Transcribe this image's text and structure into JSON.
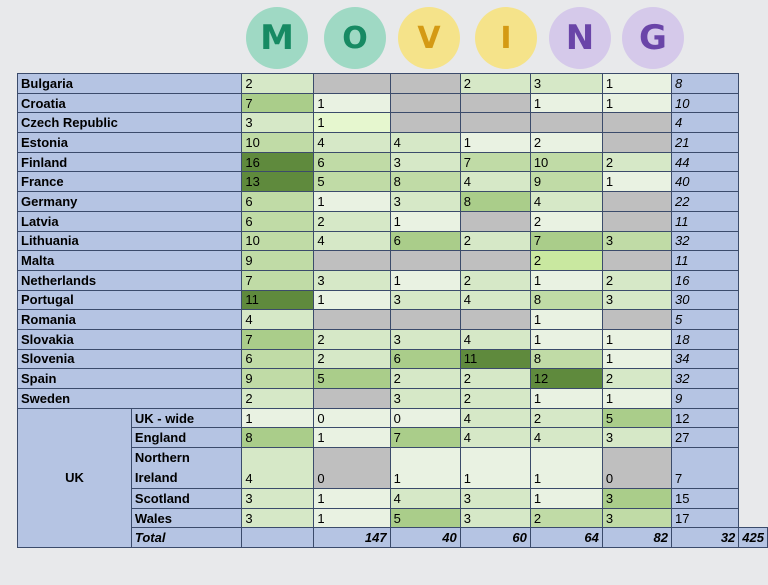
{
  "header": {
    "letters": [
      "M",
      "O",
      "V",
      "I",
      "N",
      "G"
    ]
  },
  "table": {
    "rows": [
      {
        "country": "Bulgaria",
        "cells": [
          "2",
          "",
          "",
          "2",
          "3",
          "1"
        ],
        "total": "8"
      },
      {
        "country": "Croatia",
        "cells": [
          "7",
          "1",
          "",
          "",
          "1",
          "1"
        ],
        "total": "10"
      },
      {
        "country": "Czech Republic",
        "cells": [
          "3",
          "1",
          "",
          "",
          "",
          ""
        ],
        "total": "4"
      },
      {
        "country": "Estonia",
        "cells": [
          "10",
          "4",
          "4",
          "1",
          "2",
          ""
        ],
        "total": "21"
      },
      {
        "country": "Finland",
        "cells": [
          "16",
          "6",
          "3",
          "7",
          "10",
          "2"
        ],
        "total": "44"
      },
      {
        "country": "France",
        "cells": [
          "13",
          "5",
          "8",
          "4",
          "9",
          "1"
        ],
        "total": "40"
      },
      {
        "country": "Germany",
        "cells": [
          "6",
          "1",
          "3",
          "8",
          "4",
          ""
        ],
        "total": "22"
      },
      {
        "country": "Latvia",
        "cells": [
          "6",
          "2",
          "1",
          "",
          "2",
          ""
        ],
        "total": "11"
      },
      {
        "country": "Lithuania",
        "cells": [
          "10",
          "4",
          "6",
          "2",
          "7",
          "3"
        ],
        "total": "32"
      },
      {
        "country": "Malta",
        "cells": [
          "9",
          "",
          "",
          "",
          "2",
          ""
        ],
        "total": "11"
      },
      {
        "country": "Netherlands",
        "cells": [
          "7",
          "3",
          "1",
          "2",
          "1",
          "2"
        ],
        "total": "16"
      },
      {
        "country": "Portugal",
        "cells": [
          "11",
          "1",
          "3",
          "4",
          "8",
          "3"
        ],
        "total": "30"
      },
      {
        "country": "Romania",
        "cells": [
          "4",
          "",
          "",
          "",
          "1",
          ""
        ],
        "total": "5"
      },
      {
        "country": "Slovakia",
        "cells": [
          "7",
          "2",
          "3",
          "4",
          "1",
          "1"
        ],
        "total": "18"
      },
      {
        "country": "Slovenia",
        "cells": [
          "6",
          "2",
          "6",
          "11",
          "8",
          "1"
        ],
        "total": "34"
      },
      {
        "country": "Spain",
        "cells": [
          "9",
          "5",
          "2",
          "2",
          "12",
          "2"
        ],
        "total": "32"
      },
      {
        "country": "Sweden",
        "cells": [
          "2",
          "",
          "3",
          "2",
          "1",
          "1"
        ],
        "total": "9"
      }
    ],
    "uk": {
      "label": "UK",
      "rows": [
        {
          "sub": "UK - wide",
          "cells": [
            "1",
            "0",
            "0",
            "4",
            "2",
            "5"
          ],
          "total": "12"
        },
        {
          "sub": "England",
          "cells": [
            "8",
            "1",
            "7",
            "4",
            "4",
            "3"
          ],
          "total": "27"
        },
        {
          "sub1": "Northern",
          "sub2": "Ireland",
          "cells": [
            "4",
            "0",
            "1",
            "1",
            "1",
            "0"
          ],
          "total": "7"
        },
        {
          "sub": "Scotland",
          "cells": [
            "3",
            "1",
            "4",
            "3",
            "1",
            "3"
          ],
          "total": "15"
        },
        {
          "sub": "Wales",
          "cells": [
            "3",
            "1",
            "5",
            "3",
            "2",
            "3"
          ],
          "total": "17"
        }
      ]
    },
    "totals": {
      "label": "Total",
      "values": [
        "147",
        "40",
        "60",
        "64",
        "82",
        "32"
      ],
      "grand": "425"
    }
  }
}
